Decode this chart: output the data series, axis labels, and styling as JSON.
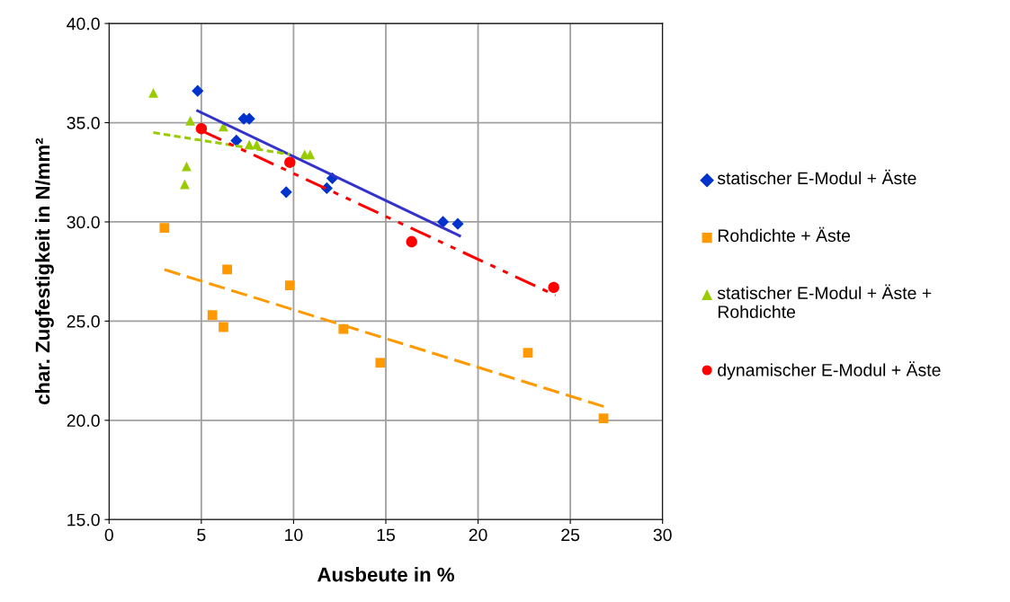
{
  "chart_data": {
    "type": "scatter",
    "xlabel": "Ausbeute in %",
    "ylabel": "char. Zugfestigkeit in N/mm²",
    "xlim": [
      0,
      30
    ],
    "ylim": [
      15,
      40
    ],
    "xticks": [
      0,
      5,
      10,
      15,
      20,
      25,
      30
    ],
    "yticks": [
      {
        "value": 15,
        "label": "15.0"
      },
      {
        "value": 20,
        "label": "20.0"
      },
      {
        "value": 25,
        "label": "25.0"
      },
      {
        "value": 30,
        "label": "30.0"
      },
      {
        "value": 35,
        "label": "35.0"
      },
      {
        "value": 40,
        "label": "40.0"
      }
    ],
    "grid": true,
    "legend": "right",
    "series": [
      {
        "name": "statischer E-Modul + Äste",
        "color": "#0033cc",
        "marker": "diamond",
        "x": [
          4.8,
          7.3,
          7.6,
          6.9,
          9.6,
          12.1,
          11.8,
          18.1,
          18.9
        ],
        "values": [
          36.6,
          35.2,
          35.2,
          34.1,
          31.5,
          32.2,
          31.7,
          30.0,
          29.9
        ]
      },
      {
        "name": "Rohdichte + Äste",
        "color": "#ff9900",
        "marker": "square",
        "x": [
          3.0,
          5.6,
          6.2,
          6.4,
          9.8,
          12.7,
          14.7,
          22.7,
          26.8
        ],
        "values": [
          29.7,
          25.3,
          24.7,
          27.6,
          26.8,
          24.6,
          22.9,
          23.4,
          20.1
        ]
      },
      {
        "name": "statischer E-Modul + Äste + Rohdichte",
        "color": "#99cc00",
        "marker": "triangle",
        "x": [
          2.4,
          4.4,
          4.2,
          4.1,
          6.2,
          7.6,
          8.0,
          10.6,
          10.9
        ],
        "values": [
          36.5,
          35.1,
          32.8,
          31.9,
          34.8,
          33.9,
          33.9,
          33.4,
          33.4
        ]
      },
      {
        "name": "dynamischer E-Modul + Äste",
        "color": "#ff0000",
        "marker": "circle",
        "x": [
          5.0,
          9.8,
          16.4,
          24.1
        ],
        "values": [
          34.7,
          33.0,
          29.0,
          26.7
        ]
      },
      {
        "type": "line",
        "color": "#3333cc",
        "line_style": "solid",
        "x": [
          4.8,
          19.0
        ],
        "values": [
          35.6,
          29.3
        ]
      },
      {
        "type": "line",
        "color": "#ff9900",
        "line_style": "dashed",
        "x": [
          3.0,
          26.8
        ],
        "values": [
          27.6,
          20.7
        ]
      },
      {
        "type": "line",
        "color": "#99cc00",
        "line_style": "dotted",
        "x": [
          2.4,
          9.8
        ],
        "values": [
          34.5,
          33.4
        ]
      },
      {
        "type": "line",
        "color": "#ff0000",
        "line_style": "dashdot",
        "x": [
          5.0,
          24.2
        ],
        "values": [
          34.6,
          26.3
        ]
      }
    ]
  }
}
